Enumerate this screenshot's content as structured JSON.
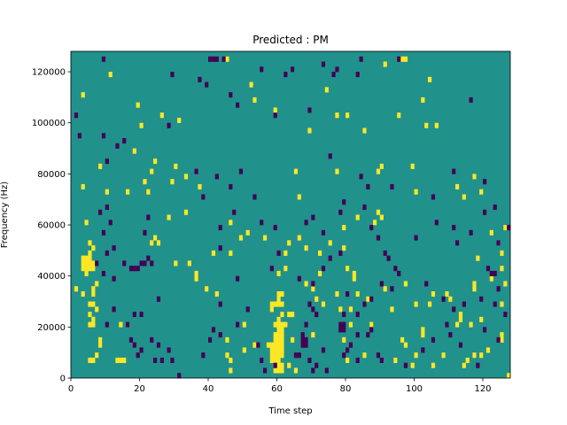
{
  "chart_data": {
    "type": "heatmap",
    "title": "Predicted : PM",
    "xlabel": "Time step",
    "ylabel": "Frequency (Hz)",
    "xlim": [
      0,
      128
    ],
    "ylim": [
      0,
      128000
    ],
    "xticks": [
      0,
      20,
      40,
      60,
      80,
      100,
      120
    ],
    "yticks": [
      0,
      20000,
      40000,
      60000,
      80000,
      100000,
      120000
    ],
    "grid": false,
    "legend": "none",
    "cell_size": {
      "x": 1,
      "y": 2000
    },
    "colors": {
      "background_value": "#21918c",
      "high_value": "#fde725",
      "low_value": "#440154"
    },
    "cells_high": [
      [
        12,
        120000
      ],
      [
        4,
        112000
      ],
      [
        20,
        108000
      ],
      [
        27,
        104000
      ],
      [
        21,
        100000
      ],
      [
        32,
        102000
      ],
      [
        19,
        90000
      ],
      [
        25,
        86000
      ],
      [
        31,
        84000
      ],
      [
        9,
        84000
      ],
      [
        24,
        82000
      ],
      [
        34,
        80000
      ],
      [
        22,
        78000
      ],
      [
        30,
        78000
      ],
      [
        4,
        76000
      ],
      [
        17,
        74000
      ],
      [
        23,
        74000
      ],
      [
        11,
        74000
      ],
      [
        38,
        76000
      ],
      [
        46,
        126000
      ],
      [
        53,
        116000
      ],
      [
        54,
        110000
      ],
      [
        60,
        106000
      ],
      [
        75,
        114000
      ],
      [
        92,
        124000
      ],
      [
        97,
        126000
      ],
      [
        98,
        126000
      ],
      [
        105,
        118000
      ],
      [
        103,
        110000
      ],
      [
        96,
        104000
      ],
      [
        107,
        100000
      ],
      [
        78,
        104000
      ],
      [
        81,
        104000
      ],
      [
        70,
        98000
      ],
      [
        86,
        98000
      ],
      [
        104,
        100000
      ],
      [
        66,
        82000
      ],
      [
        78,
        82000
      ],
      [
        91,
        84000
      ],
      [
        90,
        82000
      ],
      [
        118,
        80000
      ],
      [
        113,
        76000
      ],
      [
        67,
        72000
      ],
      [
        101,
        74000
      ],
      [
        115,
        72000
      ],
      [
        120,
        74000
      ],
      [
        100,
        84000
      ],
      [
        5,
        62000
      ],
      [
        6,
        54000
      ],
      [
        6,
        50000
      ],
      [
        7,
        52000
      ],
      [
        4,
        44000
      ],
      [
        5,
        44000
      ],
      [
        6,
        44000
      ],
      [
        7,
        44000
      ],
      [
        4,
        46000
      ],
      [
        5,
        46000
      ],
      [
        6,
        46000
      ],
      [
        7,
        46000
      ],
      [
        4,
        48000
      ],
      [
        5,
        48000
      ],
      [
        6,
        48000
      ],
      [
        5,
        42000
      ],
      [
        8,
        38000
      ],
      [
        4,
        34000
      ],
      [
        7,
        36000
      ],
      [
        2,
        36000
      ],
      [
        7,
        34000
      ],
      [
        6,
        30000
      ],
      [
        7,
        30000
      ],
      [
        8,
        28000
      ],
      [
        6,
        26000
      ],
      [
        7,
        24000
      ],
      [
        6,
        22000
      ],
      [
        7,
        22000
      ],
      [
        15,
        22000
      ],
      [
        17,
        22000
      ],
      [
        9,
        16000
      ],
      [
        9,
        14000
      ],
      [
        8,
        10000
      ],
      [
        6,
        8000
      ],
      [
        7,
        8000
      ],
      [
        14,
        8000
      ],
      [
        15,
        8000
      ],
      [
        16,
        8000
      ],
      [
        24,
        54000
      ],
      [
        25,
        56000
      ],
      [
        26,
        54000
      ],
      [
        29,
        64000
      ],
      [
        34,
        66000
      ],
      [
        35,
        46000
      ],
      [
        37,
        40000
      ],
      [
        37,
        42000
      ],
      [
        31,
        46000
      ],
      [
        40,
        36000
      ],
      [
        42,
        50000
      ],
      [
        43,
        34000
      ],
      [
        47,
        62000
      ],
      [
        50,
        56000
      ],
      [
        47,
        50000
      ],
      [
        52,
        58000
      ],
      [
        57,
        56000
      ],
      [
        51,
        12000
      ],
      [
        54,
        14000
      ],
      [
        62,
        12000
      ],
      [
        64,
        6000
      ],
      [
        66,
        4000
      ],
      [
        65,
        16000
      ],
      [
        46,
        16000
      ],
      [
        46,
        10000
      ],
      [
        47,
        4000
      ],
      [
        47,
        8000
      ],
      [
        51,
        22000
      ],
      [
        59,
        28000
      ],
      [
        59,
        30000
      ],
      [
        60,
        30000
      ],
      [
        61,
        30000
      ],
      [
        62,
        30000
      ],
      [
        61,
        32000
      ],
      [
        61,
        34000
      ],
      [
        62,
        34000
      ],
      [
        61,
        24000
      ],
      [
        62,
        26000
      ],
      [
        61,
        22000
      ],
      [
        62,
        22000
      ],
      [
        63,
        22000
      ],
      [
        60,
        22000
      ],
      [
        61,
        20000
      ],
      [
        62,
        20000
      ],
      [
        60,
        18000
      ],
      [
        61,
        18000
      ],
      [
        62,
        18000
      ],
      [
        60,
        16000
      ],
      [
        61,
        16000
      ],
      [
        62,
        16000
      ],
      [
        58,
        14000
      ],
      [
        59,
        14000
      ],
      [
        60,
        14000
      ],
      [
        61,
        14000
      ],
      [
        62,
        14000
      ],
      [
        59,
        12000
      ],
      [
        60,
        12000
      ],
      [
        61,
        12000
      ],
      [
        62,
        12000
      ],
      [
        59,
        10000
      ],
      [
        60,
        10000
      ],
      [
        61,
        10000
      ],
      [
        62,
        10000
      ],
      [
        59,
        8000
      ],
      [
        60,
        8000
      ],
      [
        61,
        8000
      ],
      [
        60,
        6000
      ],
      [
        61,
        6000
      ],
      [
        62,
        6000
      ],
      [
        60,
        4000
      ],
      [
        61,
        4000
      ],
      [
        62,
        4000
      ],
      [
        64,
        26000
      ],
      [
        65,
        26000
      ],
      [
        61,
        42000
      ],
      [
        63,
        44000
      ],
      [
        63,
        50000
      ],
      [
        64,
        54000
      ],
      [
        67,
        56000
      ],
      [
        69,
        52000
      ],
      [
        73,
        50000
      ],
      [
        76,
        54000
      ],
      [
        80,
        52000
      ],
      [
        81,
        44000
      ],
      [
        69,
        38000
      ],
      [
        71,
        36000
      ],
      [
        72,
        32000
      ],
      [
        74,
        30000
      ],
      [
        79,
        28000
      ],
      [
        78,
        34000
      ],
      [
        82,
        28000
      ],
      [
        83,
        40000
      ],
      [
        83,
        42000
      ],
      [
        84,
        34000
      ],
      [
        87,
        32000
      ],
      [
        92,
        36000
      ],
      [
        73,
        42000
      ],
      [
        80,
        60000
      ],
      [
        84,
        64000
      ],
      [
        89,
        62000
      ],
      [
        90,
        66000
      ],
      [
        91,
        64000
      ],
      [
        98,
        38000
      ],
      [
        101,
        30000
      ],
      [
        105,
        30000
      ],
      [
        106,
        34000
      ],
      [
        110,
        34000
      ],
      [
        111,
        32000
      ],
      [
        118,
        36000
      ],
      [
        118,
        38000
      ],
      [
        123,
        40000
      ],
      [
        126,
        44000
      ],
      [
        127,
        38000
      ],
      [
        126,
        30000
      ],
      [
        114,
        26000
      ],
      [
        114,
        24000
      ],
      [
        113,
        22000
      ],
      [
        117,
        22000
      ],
      [
        120,
        24000
      ],
      [
        126,
        16000
      ],
      [
        126,
        18000
      ],
      [
        122,
        12000
      ],
      [
        116,
        8000
      ],
      [
        115,
        6000
      ],
      [
        118,
        10000
      ],
      [
        128,
        2000
      ],
      [
        120,
        10000
      ],
      [
        101,
        10000
      ],
      [
        100,
        6000
      ],
      [
        95,
        8000
      ],
      [
        97,
        16000
      ],
      [
        98,
        14000
      ],
      [
        123,
        58000
      ],
      [
        125,
        54000
      ],
      [
        127,
        60000
      ],
      [
        119,
        48000
      ],
      [
        126,
        50000
      ],
      [
        103,
        20000
      ],
      [
        103,
        18000
      ],
      [
        88,
        22000
      ],
      [
        94,
        28000
      ],
      [
        109,
        10000
      ],
      [
        106,
        6000
      ],
      [
        81,
        8000
      ],
      [
        71,
        18000
      ],
      [
        82,
        22000
      ],
      [
        86,
        10000
      ],
      [
        80,
        16000
      ]
    ],
    "cells_low": [
      [
        10,
        126000
      ],
      [
        41,
        126000
      ],
      [
        42,
        126000
      ],
      [
        43,
        126000
      ],
      [
        45,
        126000
      ],
      [
        30,
        120000
      ],
      [
        56,
        122000
      ],
      [
        78,
        122000
      ],
      [
        63,
        120000
      ],
      [
        77,
        120000
      ],
      [
        38,
        118000
      ],
      [
        40,
        116000
      ],
      [
        65,
        122000
      ],
      [
        85,
        126000
      ],
      [
        96,
        126000
      ],
      [
        74,
        124000
      ],
      [
        84,
        120000
      ],
      [
        47,
        112000
      ],
      [
        49,
        108000
      ],
      [
        60,
        104000
      ],
      [
        70,
        106000
      ],
      [
        117,
        110000
      ],
      [
        2,
        104000
      ],
      [
        3,
        96000
      ],
      [
        10,
        96000
      ],
      [
        14,
        92000
      ],
      [
        16,
        94000
      ],
      [
        29,
        100000
      ],
      [
        11,
        86000
      ],
      [
        37,
        82000
      ],
      [
        50,
        82000
      ],
      [
        47,
        76000
      ],
      [
        54,
        72000
      ],
      [
        43,
        80000
      ],
      [
        76,
        88000
      ],
      [
        85,
        80000
      ],
      [
        87,
        76000
      ],
      [
        94,
        76000
      ],
      [
        106,
        72000
      ],
      [
        112,
        82000
      ],
      [
        121,
        78000
      ],
      [
        11,
        68000
      ],
      [
        23,
        64000
      ],
      [
        22,
        58000
      ],
      [
        23,
        48000
      ],
      [
        22,
        46000
      ],
      [
        21,
        46000
      ],
      [
        24,
        46000
      ],
      [
        11,
        50000
      ],
      [
        10,
        58000
      ],
      [
        12,
        62000
      ],
      [
        9,
        66000
      ],
      [
        13,
        52000
      ],
      [
        8,
        46000
      ],
      [
        10,
        42000
      ],
      [
        13,
        40000
      ],
      [
        16,
        46000
      ],
      [
        18,
        44000
      ],
      [
        19,
        44000
      ],
      [
        20,
        44000
      ],
      [
        26,
        32000
      ],
      [
        21,
        26000
      ],
      [
        13,
        28000
      ],
      [
        17,
        22000
      ],
      [
        19,
        26000
      ],
      [
        11,
        22000
      ],
      [
        18,
        16000
      ],
      [
        19,
        14000
      ],
      [
        20,
        10000
      ],
      [
        21,
        12000
      ],
      [
        24,
        16000
      ],
      [
        26,
        14000
      ],
      [
        29,
        12000
      ],
      [
        25,
        8000
      ],
      [
        27,
        8000
      ],
      [
        30,
        8000
      ],
      [
        32,
        2000
      ],
      [
        39,
        72000
      ],
      [
        44,
        60000
      ],
      [
        48,
        66000
      ],
      [
        44,
        52000
      ],
      [
        49,
        40000
      ],
      [
        44,
        30000
      ],
      [
        52,
        28000
      ],
      [
        49,
        22000
      ],
      [
        44,
        18000
      ],
      [
        42,
        20000
      ],
      [
        41,
        16000
      ],
      [
        39,
        10000
      ],
      [
        55,
        14000
      ],
      [
        56,
        8000
      ],
      [
        60,
        6000
      ],
      [
        57,
        4000
      ],
      [
        56,
        62000
      ],
      [
        60,
        60000
      ],
      [
        69,
        62000
      ],
      [
        71,
        64000
      ],
      [
        74,
        58000
      ],
      [
        79,
        66000
      ],
      [
        80,
        70000
      ],
      [
        86,
        68000
      ],
      [
        88,
        60000
      ],
      [
        90,
        56000
      ],
      [
        92,
        50000
      ],
      [
        93,
        48000
      ],
      [
        95,
        44000
      ],
      [
        101,
        56000
      ],
      [
        107,
        62000
      ],
      [
        112,
        60000
      ],
      [
        113,
        54000
      ],
      [
        117,
        58000
      ],
      [
        121,
        66000
      ],
      [
        124,
        68000
      ],
      [
        128,
        60000
      ],
      [
        125,
        54000
      ],
      [
        122,
        44000
      ],
      [
        123,
        42000
      ],
      [
        124,
        42000
      ],
      [
        125,
        36000
      ],
      [
        124,
        30000
      ],
      [
        120,
        32000
      ],
      [
        115,
        30000
      ],
      [
        112,
        28000
      ],
      [
        109,
        32000
      ],
      [
        104,
        38000
      ],
      [
        96,
        42000
      ],
      [
        94,
        36000
      ],
      [
        91,
        38000
      ],
      [
        88,
        32000
      ],
      [
        86,
        30000
      ],
      [
        84,
        26000
      ],
      [
        80,
        26000
      ],
      [
        79,
        22000
      ],
      [
        80,
        22000
      ],
      [
        79,
        20000
      ],
      [
        80,
        20000
      ],
      [
        84,
        18000
      ],
      [
        81,
        12000
      ],
      [
        82,
        14000
      ],
      [
        87,
        18000
      ],
      [
        88,
        20000
      ],
      [
        84,
        8000
      ],
      [
        80,
        10000
      ],
      [
        70,
        30000
      ],
      [
        71,
        28000
      ],
      [
        72,
        26000
      ],
      [
        69,
        22000
      ],
      [
        68,
        18000
      ],
      [
        68,
        16000
      ],
      [
        69,
        16000
      ],
      [
        68,
        14000
      ],
      [
        69,
        14000
      ],
      [
        66,
        10000
      ],
      [
        67,
        10000
      ],
      [
        70,
        8000
      ],
      [
        72,
        6000
      ],
      [
        75,
        4000
      ],
      [
        71,
        4000
      ],
      [
        74,
        12000
      ],
      [
        90,
        10000
      ],
      [
        91,
        8000
      ],
      [
        98,
        6000
      ],
      [
        103,
        12000
      ],
      [
        106,
        16000
      ],
      [
        110,
        22000
      ],
      [
        111,
        18000
      ],
      [
        114,
        14000
      ],
      [
        119,
        6000
      ],
      [
        121,
        20000
      ],
      [
        125,
        16000
      ],
      [
        127,
        26000
      ],
      [
        59,
        44000
      ],
      [
        61,
        50000
      ],
      [
        67,
        40000
      ],
      [
        71,
        38000
      ],
      [
        74,
        44000
      ],
      [
        76,
        48000
      ],
      [
        79,
        50000
      ],
      [
        81,
        34000
      ]
    ]
  }
}
